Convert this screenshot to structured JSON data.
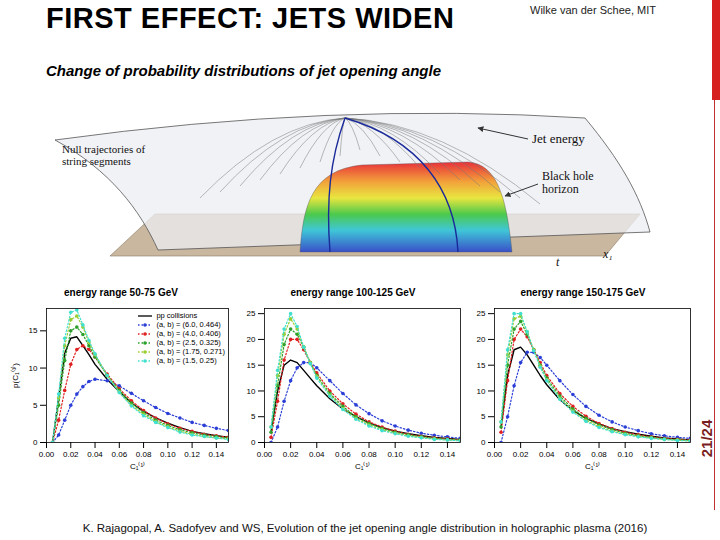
{
  "slide": {
    "title": "FIRST EFFECT: JETS WIDEN",
    "author": "Wilke van der Schee, MIT",
    "subtitle": "Change of probability distributions of jet opening angle",
    "page": "21/24",
    "citation": "K. Rajagopal, A. Sadofyev and WS, Evolution of the jet opening angle distribution in holographic plasma (2016)",
    "diagram": {
      "null_trajectories": [
        "Null trajectories of",
        "string segments"
      ],
      "jet_energy": "Jet energy",
      "horizon": [
        "Black hole",
        "horizon"
      ],
      "t": "t",
      "x1": "x₁"
    }
  },
  "chart_data": [
    {
      "type": "line",
      "title": "energy range 50-75 GeV",
      "x_label": "C₁⁽¹⁾",
      "y_label": "p(C₁⁽¹⁾)",
      "legend": "top-right",
      "xlim": [
        0,
        0.15
      ],
      "xticks": [
        {
          "value": 0,
          "label": "0.00"
        },
        {
          "value": 0.02,
          "label": "0.02"
        },
        {
          "value": 0.04,
          "label": "0.04"
        },
        {
          "value": 0.06,
          "label": "0.06"
        },
        {
          "value": 0.08,
          "label": "0.08"
        },
        {
          "value": 0.1,
          "label": "0.10"
        },
        {
          "value": 0.12,
          "label": "0.12"
        },
        {
          "value": 0.14,
          "label": "0.14"
        }
      ],
      "ylim": [
        0,
        18
      ],
      "yticks": [
        0,
        5,
        10,
        15
      ],
      "x": [
        0.005,
        0.01,
        0.015,
        0.02,
        0.025,
        0.03,
        0.035,
        0.04,
        0.05,
        0.06,
        0.07,
        0.08,
        0.09,
        0.1,
        0.11,
        0.12,
        0.13,
        0.14,
        0.15
      ],
      "series": [
        {
          "name": "pp collisions",
          "color": "#000000",
          "line_style": "solid",
          "values": [
            0,
            6,
            12,
            14,
            14.2,
            13,
            11.8,
            10.5,
            8.5,
            6.8,
            5.3,
            4.2,
            3.3,
            2.6,
            2.0,
            1.5,
            1.2,
            0.9,
            0.7
          ]
        },
        {
          "name": "(a, b) = (6.0, 0.464)",
          "color": "#2b3fd6",
          "line_style": "dotted",
          "marker": "circle",
          "values": [
            0,
            1,
            3,
            5,
            6.5,
            7.5,
            8.2,
            8.5,
            8.3,
            7.6,
            6.6,
            5.6,
            4.7,
            3.9,
            3.3,
            2.7,
            2.3,
            1.9,
            1.6
          ]
        },
        {
          "name": "(a, b) = (4.0, 0.406)",
          "color": "#e02020",
          "line_style": "dotted",
          "marker": "circle",
          "values": [
            0,
            3,
            7,
            10.5,
            12.5,
            13,
            12.5,
            11.5,
            9.2,
            7.2,
            5.6,
            4.3,
            3.3,
            2.5,
            1.9,
            1.5,
            1.1,
            0.9,
            0.7
          ]
        },
        {
          "name": "(a, b) = (2.5, 0.325)",
          "color": "#2ca02c",
          "line_style": "dotted",
          "marker": "circle",
          "values": [
            0,
            5,
            11,
            15,
            15.5,
            14.5,
            13,
            11.5,
            9,
            7,
            5.3,
            4,
            3,
            2.3,
            1.7,
            1.3,
            1,
            0.8,
            0.6
          ]
        },
        {
          "name": "(a, b) = (1.75, 0.271)",
          "color": "#9acd32",
          "line_style": "dotted",
          "marker": "circle",
          "values": [
            0,
            6,
            13,
            16.5,
            17,
            15.5,
            13.5,
            11.8,
            9,
            6.8,
            5,
            3.8,
            2.8,
            2.1,
            1.5,
            1.1,
            0.8,
            0.6,
            0.5
          ]
        },
        {
          "name": "(a, b) = (1.5, 0.25)",
          "color": "#40e0d0",
          "line_style": "dotted",
          "marker": "circle",
          "values": [
            0,
            6.5,
            14,
            17.5,
            17.8,
            15.8,
            13.7,
            11.9,
            9,
            6.7,
            4.9,
            3.6,
            2.7,
            2,
            1.4,
            1,
            0.8,
            0.6,
            0.4
          ]
        }
      ]
    },
    {
      "type": "line",
      "title": "energy range 100-125 GeV",
      "x_label": "C₁⁽¹⁾",
      "xlim": [
        0,
        0.15
      ],
      "xticks": [
        {
          "value": 0,
          "label": "0.00"
        },
        {
          "value": 0.02,
          "label": "0.02"
        },
        {
          "value": 0.04,
          "label": "0.04"
        },
        {
          "value": 0.06,
          "label": "0.06"
        },
        {
          "value": 0.08,
          "label": "0.08"
        },
        {
          "value": 0.1,
          "label": "0.10"
        },
        {
          "value": 0.12,
          "label": "0.12"
        },
        {
          "value": 0.14,
          "label": "0.14"
        }
      ],
      "ylim": [
        0,
        26
      ],
      "yticks": [
        0,
        5,
        10,
        15,
        20,
        25
      ],
      "x": [
        0.005,
        0.01,
        0.015,
        0.02,
        0.025,
        0.03,
        0.035,
        0.04,
        0.05,
        0.06,
        0.07,
        0.08,
        0.09,
        0.1,
        0.11,
        0.12,
        0.13,
        0.14,
        0.15
      ],
      "series": [
        {
          "name": "pp collisions",
          "color": "#000000",
          "line_style": "solid",
          "values": [
            2,
            10,
            15,
            16,
            15.5,
            14,
            12.5,
            11,
            8.5,
            6.5,
            5,
            3.8,
            2.9,
            2.2,
            1.7,
            1.3,
            1,
            0.8,
            0.6
          ]
        },
        {
          "name": "(a, b) = (6.0, 0.464)",
          "color": "#2b3fd6",
          "line_style": "dotted",
          "marker": "circle",
          "values": [
            0,
            3,
            8,
            12,
            14.5,
            15.5,
            15.5,
            14.5,
            12,
            9.5,
            7.3,
            5.6,
            4.2,
            3.2,
            2.4,
            1.8,
            1.4,
            1.1,
            0.8
          ]
        },
        {
          "name": "(a, b) = (4.0, 0.406)",
          "color": "#e02020",
          "line_style": "dotted",
          "marker": "circle",
          "values": [
            1,
            8,
            16,
            20,
            20,
            18,
            15.5,
            13.5,
            10,
            7.5,
            5.5,
            4,
            3,
            2.2,
            1.6,
            1.2,
            0.9,
            0.7,
            0.5
          ]
        },
        {
          "name": "(a, b) = (2.5, 0.325)",
          "color": "#2ca02c",
          "line_style": "dotted",
          "marker": "circle",
          "values": [
            2,
            11,
            19,
            22,
            21,
            18.5,
            15.5,
            13,
            9.5,
            7,
            5,
            3.7,
            2.7,
            2,
            1.5,
            1.1,
            0.8,
            0.6,
            0.5
          ]
        },
        {
          "name": "(a, b) = (1.75, 0.271)",
          "color": "#9acd32",
          "line_style": "dotted",
          "marker": "circle",
          "values": [
            3,
            13,
            21,
            24,
            22,
            18.5,
            15.5,
            12.8,
            9.2,
            6.6,
            4.7,
            3.4,
            2.5,
            1.8,
            1.3,
            1,
            0.7,
            0.5,
            0.4
          ]
        },
        {
          "name": "(a, b) = (1.5, 0.25)",
          "color": "#40e0d0",
          "line_style": "dotted",
          "marker": "circle",
          "values": [
            3,
            14,
            22,
            25,
            22.5,
            18.5,
            15.3,
            12.5,
            9,
            6.4,
            4.5,
            3.2,
            2.3,
            1.7,
            1.2,
            0.9,
            0.6,
            0.5,
            0.3
          ]
        }
      ]
    },
    {
      "type": "line",
      "title": "energy range 150-175 GeV",
      "x_label": "C₁⁽¹⁾",
      "xlim": [
        0,
        0.15
      ],
      "xticks": [
        {
          "value": 0,
          "label": "0.00"
        },
        {
          "value": 0.02,
          "label": "0.02"
        },
        {
          "value": 0.04,
          "label": "0.04"
        },
        {
          "value": 0.06,
          "label": "0.06"
        },
        {
          "value": 0.08,
          "label": "0.08"
        },
        {
          "value": 0.1,
          "label": "0.10"
        },
        {
          "value": 0.12,
          "label": "0.12"
        },
        {
          "value": 0.14,
          "label": "0.14"
        }
      ],
      "ylim": [
        0,
        26
      ],
      "yticks": [
        0,
        5,
        10,
        15,
        20,
        25
      ],
      "x": [
        0.005,
        0.01,
        0.015,
        0.02,
        0.025,
        0.03,
        0.035,
        0.04,
        0.05,
        0.06,
        0.07,
        0.08,
        0.09,
        0.1,
        0.11,
        0.12,
        0.13,
        0.14,
        0.15
      ],
      "series": [
        {
          "name": "pp collisions",
          "color": "#000000",
          "line_style": "solid",
          "values": [
            3,
            13,
            18,
            18.5,
            17,
            15,
            13,
            11.2,
            8.3,
            6.2,
            4.7,
            3.6,
            2.7,
            2.1,
            1.6,
            1.2,
            0.9,
            0.7,
            0.5
          ]
        },
        {
          "name": "(a, b) = (6.0, 0.464)",
          "color": "#2b3fd6",
          "line_style": "dotted",
          "marker": "circle",
          "values": [
            0,
            5,
            11,
            15.5,
            17.5,
            17.5,
            16.5,
            15,
            12,
            9.3,
            7,
            5.3,
            4,
            3,
            2.3,
            1.7,
            1.3,
            1,
            0.8
          ]
        },
        {
          "name": "(a, b) = (4.0, 0.406)",
          "color": "#e02020",
          "line_style": "dotted",
          "marker": "circle",
          "values": [
            2,
            12,
            20,
            22,
            20.5,
            18,
            15.5,
            13,
            9.5,
            7,
            5.1,
            3.7,
            2.7,
            2,
            1.5,
            1.1,
            0.8,
            0.6,
            0.5
          ]
        },
        {
          "name": "(a, b) = (2.5, 0.325)",
          "color": "#2ca02c",
          "line_style": "dotted",
          "marker": "circle",
          "values": [
            3,
            15,
            22,
            23.5,
            21,
            18,
            15,
            12.5,
            9,
            6.5,
            4.7,
            3.4,
            2.5,
            1.8,
            1.3,
            1,
            0.7,
            0.5,
            0.4
          ]
        },
        {
          "name": "(a, b) = (1.75, 0.271)",
          "color": "#9acd32",
          "line_style": "dotted",
          "marker": "circle",
          "values": [
            4,
            17,
            24,
            24.5,
            21.5,
            18,
            14.8,
            12.2,
            8.6,
            6.1,
            4.3,
            3.1,
            2.2,
            1.6,
            1.2,
            0.9,
            0.6,
            0.5,
            0.3
          ]
        },
        {
          "name": "(a, b) = (1.5, 0.25)",
          "color": "#40e0d0",
          "line_style": "dotted",
          "marker": "circle",
          "values": [
            4,
            18,
            25,
            25,
            21.5,
            17.8,
            14.6,
            12,
            8.4,
            5.9,
            4.1,
            2.9,
            2.1,
            1.5,
            1.1,
            0.8,
            0.6,
            0.4,
            0.3
          ]
        }
      ]
    }
  ]
}
